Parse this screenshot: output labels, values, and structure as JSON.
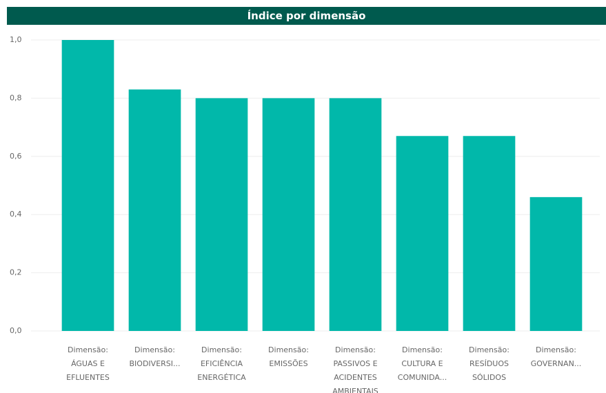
{
  "chart_data": {
    "type": "bar",
    "title": "Índice por dimensão",
    "categories": [
      "Dimensão: ÁGUAS E EFLUENTES",
      "Dimensão: BIODIVERSI...",
      "Dimensão: EFICIÊNCIA ENERGÉTICA",
      "Dimensão: EMISSÕES",
      "Dimensão: PASSIVOS E ACIDENTES AMBIENTAIS",
      "Dimensão: CULTURA E COMUNIDA...",
      "Dimensão: RESÍDUOS SÓLIDOS",
      "Dimensão: GOVERNAN..."
    ],
    "values": [
      1.0,
      0.83,
      0.8,
      0.8,
      0.8,
      0.67,
      0.67,
      0.46
    ],
    "color": "#01b8aa",
    "ylim": [
      0,
      1
    ],
    "yticks": [
      {
        "value": 0,
        "label": "0,0"
      },
      {
        "value": 0.2,
        "label": "0,2"
      },
      {
        "value": 0.4,
        "label": "0,4"
      },
      {
        "value": 0.6,
        "label": "0,6"
      },
      {
        "value": 0.8,
        "label": "0,8"
      },
      {
        "value": 1,
        "label": "1,0"
      }
    ],
    "grid": true
  }
}
